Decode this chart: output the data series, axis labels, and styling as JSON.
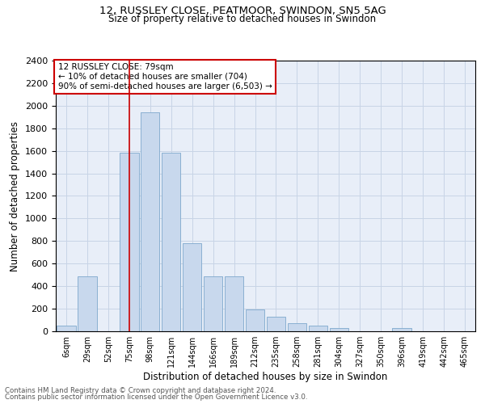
{
  "title": "12, RUSSLEY CLOSE, PEATMOOR, SWINDON, SN5 5AG",
  "subtitle": "Size of property relative to detached houses in Swindon",
  "xlabel": "Distribution of detached houses by size in Swindon",
  "ylabel": "Number of detached properties",
  "categories": [
    "6sqm",
    "29sqm",
    "52sqm",
    "75sqm",
    "98sqm",
    "121sqm",
    "144sqm",
    "166sqm",
    "189sqm",
    "212sqm",
    "235sqm",
    "258sqm",
    "281sqm",
    "304sqm",
    "327sqm",
    "350sqm",
    "396sqm",
    "419sqm",
    "442sqm",
    "465sqm"
  ],
  "values": [
    50,
    490,
    0,
    1580,
    1940,
    1580,
    780,
    490,
    490,
    190,
    130,
    70,
    50,
    30,
    0,
    0,
    30,
    0,
    0,
    0
  ],
  "bar_color": "#c8d8ed",
  "bar_edgecolor": "#7ea8cc",
  "vline_x": 3,
  "vline_color": "#cc0000",
  "annotation_box_text": "12 RUSSLEY CLOSE: 79sqm\n← 10% of detached houses are smaller (704)\n90% of semi-detached houses are larger (6,503) →",
  "annotation_box_color": "#cc0000",
  "ylim": [
    0,
    2400
  ],
  "yticks": [
    0,
    200,
    400,
    600,
    800,
    1000,
    1200,
    1400,
    1600,
    1800,
    2000,
    2200,
    2400
  ],
  "grid_color": "#c8d4e6",
  "bg_color": "#e8eef8",
  "footer_line1": "Contains HM Land Registry data © Crown copyright and database right 2024.",
  "footer_line2": "Contains public sector information licensed under the Open Government Licence v3.0."
}
